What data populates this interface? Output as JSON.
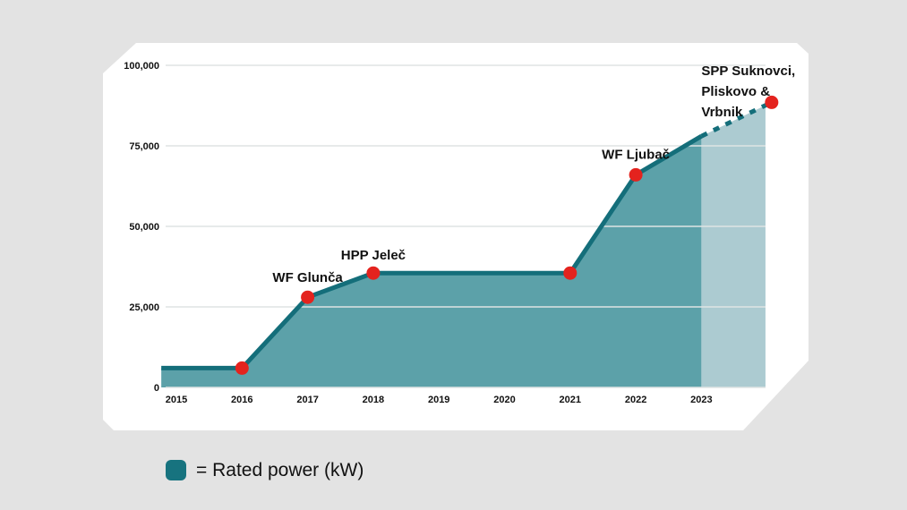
{
  "colors": {
    "page_background": "#e3e3e3",
    "card_background": "#ffffff",
    "line": "#146e7a",
    "area_fill": "#5ca1a9",
    "area_fill_projected": "#accbd1",
    "dot": "#e4231e",
    "gridline": "#dfe4e4",
    "text": "#111111"
  },
  "legend": {
    "swatch_color": "#17737f",
    "label": "= Rated power (kW)"
  },
  "chart_data": {
    "type": "area",
    "title": "",
    "xlabel": "",
    "ylabel": "Rated power (kW)",
    "ylim": [
      0,
      100000
    ],
    "xlim": [
      2014.77,
      2024.07
    ],
    "grid": true,
    "legend_position": "bottom-left",
    "y_ticks": [
      {
        "value": 0,
        "label": "0"
      },
      {
        "value": 25000,
        "label": "25,000"
      },
      {
        "value": 50000,
        "label": "50,000"
      },
      {
        "value": 75000,
        "label": "75,000"
      },
      {
        "value": 100000,
        "label": "100,000"
      }
    ],
    "x_ticks": [
      {
        "value": 2015,
        "label": "2015"
      },
      {
        "value": 2016,
        "label": "2016"
      },
      {
        "value": 2017,
        "label": "2017"
      },
      {
        "value": 2018,
        "label": "2018"
      },
      {
        "value": 2019,
        "label": "2019"
      },
      {
        "value": 2020,
        "label": "2020"
      },
      {
        "value": 2021,
        "label": "2021"
      },
      {
        "value": 2022,
        "label": "2022"
      },
      {
        "value": 2023,
        "label": "2023"
      }
    ],
    "series": [
      {
        "name": "Rated power (kW)",
        "points": [
          {
            "x": 2014.77,
            "y": 6000,
            "dot": false
          },
          {
            "x": 2016,
            "y": 6000,
            "dot": true
          },
          {
            "x": 2017,
            "y": 28000,
            "dot": true
          },
          {
            "x": 2018,
            "y": 35500,
            "dot": true
          },
          {
            "x": 2021,
            "y": 35500,
            "dot": true
          },
          {
            "x": 2022,
            "y": 66000,
            "dot": true
          },
          {
            "x": 2023,
            "y": 78000,
            "dot": false
          },
          {
            "x": 2024.07,
            "y": 88500,
            "dot": true,
            "projected": true
          }
        ]
      }
    ],
    "projection_start_x": 2023,
    "area_end_x": 2023.976,
    "annotations": [
      {
        "text": "WF Glunča",
        "x": 2017,
        "y": 28000,
        "anchor": "middle",
        "dy": -17
      },
      {
        "text": "HPP Jeleč",
        "x": 2018,
        "y": 35500,
        "anchor": "middle",
        "dy": -15
      },
      {
        "text": "WF Ljubač",
        "x": 2022,
        "y": 66000,
        "anchor": "middle",
        "dy": -18
      },
      {
        "lines": [
          "SPP Suknovci,",
          "Pliskovo &",
          "Vrbnik"
        ],
        "x": 2023,
        "anchor": "start"
      }
    ]
  }
}
